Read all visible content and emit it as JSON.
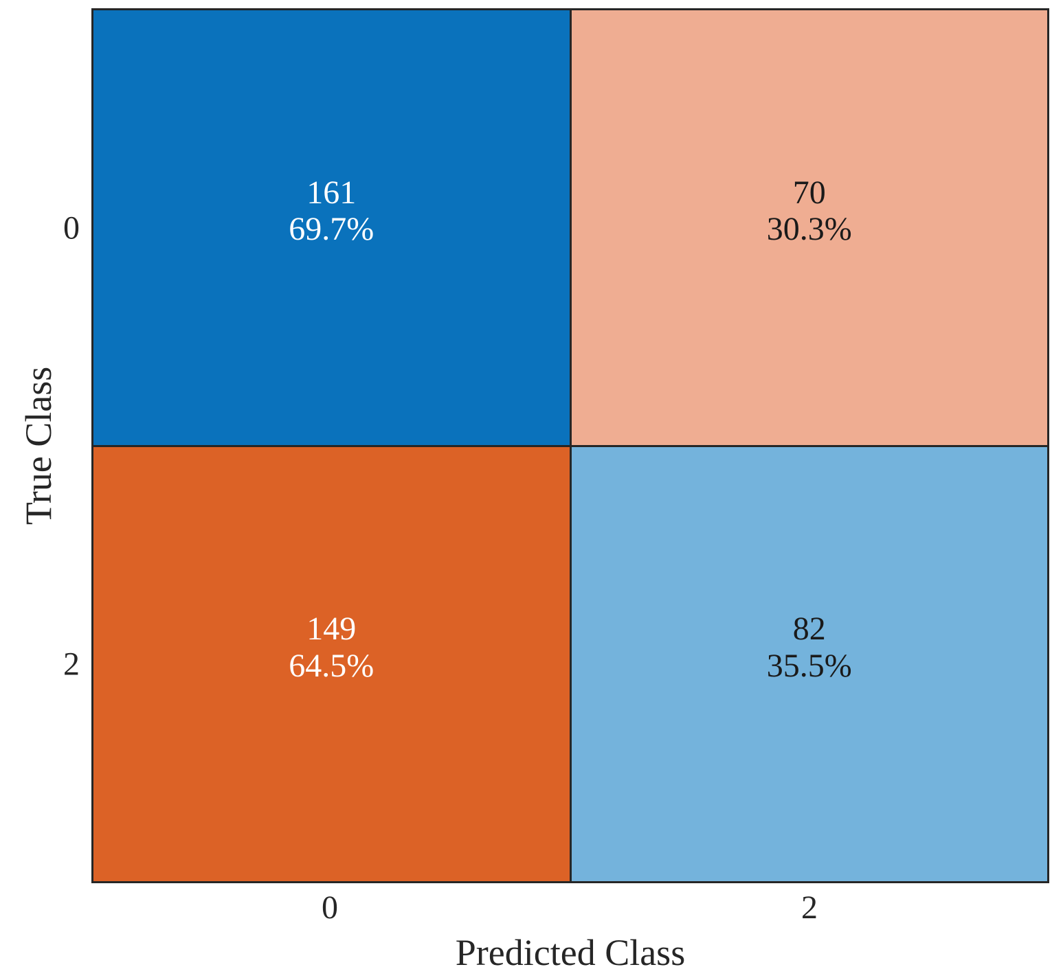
{
  "chart_data": {
    "type": "heatmap",
    "subtype": "confusion-matrix",
    "title": "",
    "xlabel": "Predicted Class",
    "ylabel": "True Class",
    "x_tick_labels": [
      "0",
      "2"
    ],
    "y_tick_labels": [
      "0",
      "2"
    ],
    "grid_color": "#262626",
    "background": "#ffffff",
    "cells": [
      {
        "true_class": "0",
        "predicted_class": "0",
        "count": "161",
        "percent": "69.7%",
        "count_value": 161,
        "percent_value": 69.7,
        "bg": "#0a72bc",
        "fg": "#ffffff"
      },
      {
        "true_class": "0",
        "predicted_class": "2",
        "count": "70",
        "percent": "30.3%",
        "count_value": 70,
        "percent_value": 30.3,
        "bg": "#efad92",
        "fg": "#1a1a1a"
      },
      {
        "true_class": "2",
        "predicted_class": "0",
        "count": "149",
        "percent": "64.5%",
        "count_value": 149,
        "percent_value": 64.5,
        "bg": "#dc6226",
        "fg": "#ffffff"
      },
      {
        "true_class": "2",
        "predicted_class": "2",
        "count": "82",
        "percent": "35.5%",
        "count_value": 82,
        "percent_value": 35.5,
        "bg": "#74b3dc",
        "fg": "#1a1a1a"
      }
    ]
  }
}
